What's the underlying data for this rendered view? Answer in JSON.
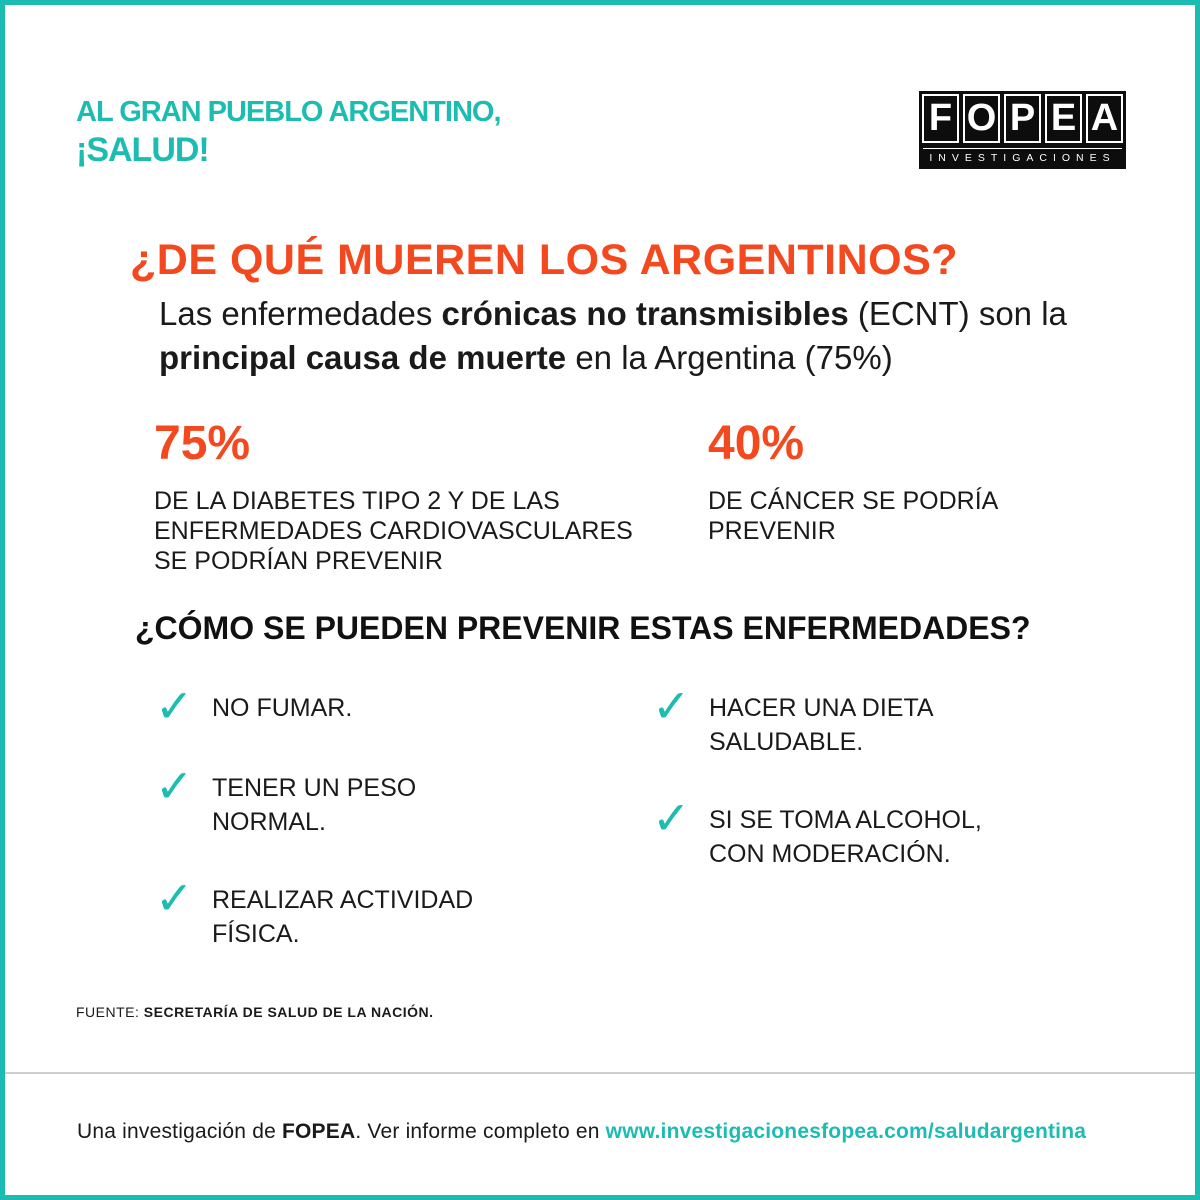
{
  "header": {
    "tagline_line1": "AL GRAN PUEBLO ARGENTINO,",
    "tagline_line2": "¡SALUD!",
    "logo": {
      "letters": [
        "F",
        "O",
        "P",
        "E",
        "A"
      ],
      "subtitle": "INVESTIGACIONES"
    }
  },
  "headline": "¿DE QUÉ MUEREN LOS ARGENTINOS?",
  "intro": {
    "part1": "Las enfermedades ",
    "bold1": "crónicas no transmisibles",
    "part2": " (ECNT) son la ",
    "bold2": "principal causa de muerte",
    "part3": " en la Argentina (75%)"
  },
  "stats": [
    {
      "value": "75%",
      "description": "DE LA DIABETES TIPO 2 Y DE LAS ENFERMEDADES CARDIOVASCULARES SE PODRÍAN PREVENIR"
    },
    {
      "value": "40%",
      "description": "DE CÁNCER SE PODRÍA PREVENIR"
    }
  ],
  "subheadline": "¿CÓMO SE PUEDEN PREVENIR ESTAS ENFERMEDADES?",
  "tips_left": [
    {
      "line1": "NO FUMAR.",
      "line2": ""
    },
    {
      "line1": "TENER UN PESO",
      "line2": "NORMAL."
    },
    {
      "line1": "REALIZAR ACTIVIDAD",
      "line2": "FÍSICA."
    }
  ],
  "tips_right": [
    {
      "line1": "HACER UNA DIETA",
      "line2": "SALUDABLE."
    },
    {
      "line1": "SI SE TOMA ALCOHOL,",
      "line2": "CON MODERACIÓN."
    }
  ],
  "check_glyph": "✓",
  "source": {
    "label": "FUENTE: ",
    "value": "SECRETARÍA DE SALUD DE LA NACIÓN."
  },
  "footer": {
    "prefix": "Una investigación de ",
    "brand": "FOPEA",
    "middle": ". Ver informe completo en ",
    "url": "www.investigacionesfopea.com/saludargentina"
  },
  "colors": {
    "accent_teal": "#1dbcb1",
    "accent_orange": "#f4491f",
    "logo_bg": "#0d0d0d"
  }
}
